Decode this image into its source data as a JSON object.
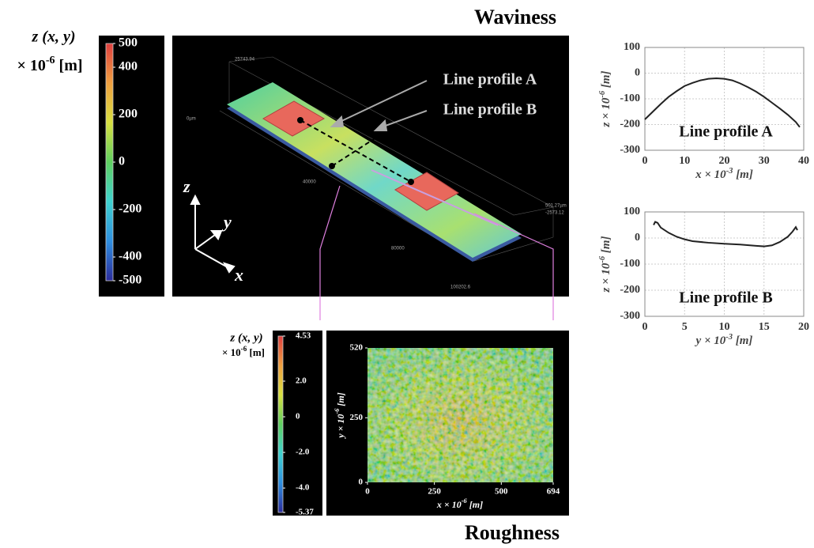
{
  "waviness_title": "Waviness",
  "roughness_title": "Roughness",
  "waviness_colorbar": {
    "label": "z (x, y)",
    "unit_label": {
      "base": "× 10",
      "sup": "-6",
      "unit": " [m]"
    },
    "lim": [
      -500,
      500
    ],
    "ticks": [
      500,
      400,
      200,
      0,
      -200,
      -400,
      -500
    ],
    "colormap": [
      "#2c2c9c",
      "#2f8fe0",
      "#3fd2d0",
      "#5fd060",
      "#d8e040",
      "#f0a040",
      "#e04040"
    ]
  },
  "view_3d": {
    "annotations": [
      "Line profile A",
      "Line profile B"
    ],
    "axes": [
      "z",
      "y",
      "x"
    ],
    "scale_labels": [
      "25743.94",
      "0µm",
      "40000",
      "80000",
      "100202.6",
      "501.27µm",
      "-2573.12"
    ]
  },
  "roughness_colorbar": {
    "label": "z (x, y)",
    "unit_label": {
      "base": "× 10",
      "sup": "-6",
      "unit": " [m]"
    },
    "lim": [
      -5.37,
      4.53
    ],
    "ticks": [
      4.53,
      {
        "value": 2,
        "label": "2.0"
      },
      0,
      {
        "value": -2,
        "label": "-2.0"
      },
      {
        "value": -4,
        "label": "-4.0"
      },
      -5.37
    ],
    "colormap": [
      "#2c2c9c",
      "#2f8fe0",
      "#3fd2d0",
      "#5fd060",
      "#d8e040",
      "#f0a040",
      "#e04040"
    ]
  },
  "roughness_map": {
    "xlim": [
      0,
      694
    ],
    "ylim": [
      0,
      520
    ],
    "xticks": [
      0,
      250,
      500,
      694
    ],
    "yticks": [
      0,
      250,
      520
    ],
    "x_label": {
      "base": "x × 10",
      "sup": "-6",
      "unit": " [m]"
    },
    "y_label": {
      "base": "y × 10",
      "sup": "-6",
      "unit": " [m]"
    }
  },
  "chart_data": [
    {
      "type": "line",
      "annotation": "Line profile A",
      "color": "#222222",
      "grid": true,
      "x_label": {
        "base": "x × 10",
        "sup": "-3",
        "unit": " [m]"
      },
      "y_label": {
        "base": "z × 10",
        "sup": "-6",
        "unit": " [m]"
      },
      "x": [
        0,
        2,
        4,
        6,
        8,
        10,
        12,
        14,
        16,
        18,
        20,
        22,
        24,
        26,
        28,
        30,
        32,
        34,
        36,
        38,
        39
      ],
      "values": [
        -180,
        -150,
        -120,
        -92,
        -70,
        -50,
        -38,
        -28,
        -22,
        -20,
        -22,
        -28,
        -40,
        -55,
        -72,
        -92,
        -115,
        -138,
        -162,
        -190,
        -210
      ],
      "xlim": [
        0,
        40
      ],
      "ylim": [
        -300,
        100
      ],
      "xticks": [
        0,
        10,
        20,
        30,
        40
      ],
      "yticks": [
        100,
        0,
        -100,
        -200,
        -300
      ]
    },
    {
      "type": "line",
      "annotation": "Line profile B",
      "color": "#222222",
      "grid": true,
      "x_label": {
        "base": "y × 10",
        "sup": "-3",
        "unit": " [m]"
      },
      "y_label": {
        "base": "z × 10",
        "sup": "-6",
        "unit": " [m]"
      },
      "x": [
        1.1,
        1.3,
        1.6,
        2,
        3,
        4,
        5,
        6,
        8,
        10,
        12,
        14,
        15,
        16,
        17,
        18,
        18.6,
        19,
        19.2
      ],
      "values": [
        50,
        62,
        58,
        40,
        20,
        5,
        -5,
        -12,
        -18,
        -22,
        -25,
        -30,
        -32,
        -28,
        -15,
        5,
        25,
        42,
        30
      ],
      "xlim": [
        0,
        20
      ],
      "ylim": [
        -300,
        100
      ],
      "xticks": [
        0,
        5,
        10,
        15,
        20
      ],
      "yticks": [
        100,
        0,
        -100,
        -200,
        -300
      ]
    }
  ]
}
